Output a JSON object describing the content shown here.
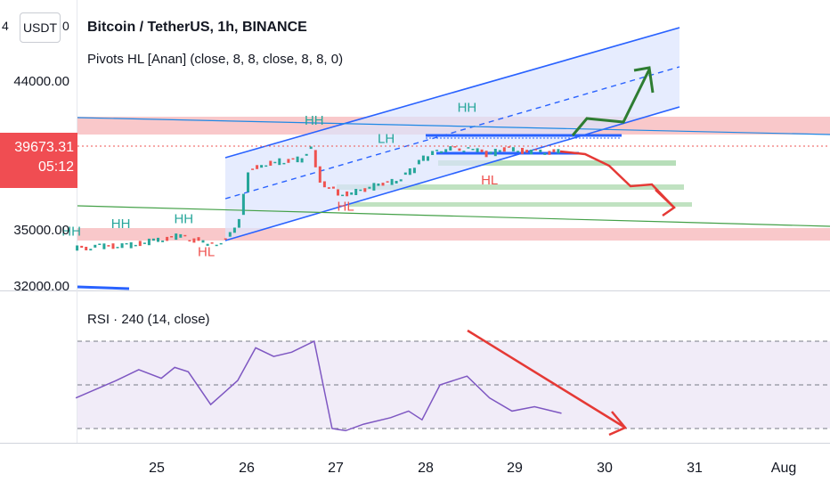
{
  "header": {
    "title": "Bitcoin / TetherUS, 1h, BINANCE",
    "indicator": "Pivots HL [Anan] (close, 8, 8, close, 8, 8, 0)",
    "unit_left": "4",
    "unit": "USDT",
    "unit_right": "0"
  },
  "last_price": {
    "value": "39673.31",
    "countdown": "05:12"
  },
  "rsi_panel": {
    "label": "RSI · 240 (14, close)"
  },
  "colors": {
    "up": "#26a69a",
    "down": "#ef5350",
    "channel": "#2962ff",
    "arrow_green": "#2e7d32",
    "arrow_red": "#e53935",
    "rsi_line": "#7e57c2"
  },
  "chart_data": [
    {
      "type": "candlestick",
      "title": "Bitcoin / TetherUS, 1h, BINANCE",
      "x_ticks": [
        "25",
        "26",
        "27",
        "28",
        "29",
        "30",
        "31",
        "Aug"
      ],
      "y_ticks": [
        "44000.00",
        "35000.00",
        "32000.00"
      ],
      "price_path": [
        [
          24.1,
          33800
        ],
        [
          24.4,
          33950
        ],
        [
          24.7,
          34000
        ],
        [
          25.0,
          34300
        ],
        [
          25.3,
          34600
        ],
        [
          25.6,
          34050
        ],
        [
          25.8,
          34350
        ],
        [
          25.95,
          35700
        ],
        [
          26.05,
          38600
        ],
        [
          26.2,
          38900
        ],
        [
          26.4,
          39100
        ],
        [
          26.6,
          39200
        ],
        [
          26.75,
          39900
        ],
        [
          26.85,
          37900
        ],
        [
          27.0,
          37300
        ],
        [
          27.1,
          37100
        ],
        [
          27.3,
          37300
        ],
        [
          27.5,
          37700
        ],
        [
          27.7,
          37900
        ],
        [
          27.85,
          38500
        ],
        [
          28.0,
          39300
        ],
        [
          28.2,
          39800
        ],
        [
          28.5,
          39900
        ],
        [
          28.7,
          39500
        ],
        [
          28.9,
          39850
        ],
        [
          29.2,
          39650
        ],
        [
          29.5,
          39673
        ]
      ],
      "pivot_labels": [
        {
          "text": "HH",
          "x": 24.05,
          "y": 34600,
          "kind": "high"
        },
        {
          "text": "HH",
          "x": 24.6,
          "y": 35050,
          "kind": "high"
        },
        {
          "text": "HH",
          "x": 25.3,
          "y": 35350,
          "kind": "high"
        },
        {
          "text": "HL",
          "x": 25.55,
          "y": 33350,
          "kind": "low"
        },
        {
          "text": "HH",
          "x": 26.75,
          "y": 41300,
          "kind": "high"
        },
        {
          "text": "LH",
          "x": 27.55,
          "y": 40200,
          "kind": "high"
        },
        {
          "text": "HL",
          "x": 27.1,
          "y": 36100,
          "kind": "low"
        },
        {
          "text": "HH",
          "x": 28.45,
          "y": 42100,
          "kind": "high"
        },
        {
          "text": "HL",
          "x": 28.7,
          "y": 37700,
          "kind": "low"
        }
      ],
      "last_price": 39673.31,
      "grid": false
    },
    {
      "type": "line",
      "title": "RSI · 240 (14, close)",
      "series": [
        {
          "name": "RSI · 240 (14, close)",
          "x": [
            24.1,
            24.55,
            24.8,
            25.05,
            25.2,
            25.35,
            25.6,
            25.9,
            26.1,
            26.3,
            26.5,
            26.75,
            26.95,
            27.1,
            27.3,
            27.6,
            27.8,
            27.95,
            28.15,
            28.45,
            28.7,
            28.95,
            29.2,
            29.5
          ],
          "y": [
            44,
            52,
            57,
            53,
            58,
            56,
            41,
            52,
            67,
            63,
            65,
            70,
            30,
            29,
            32,
            35,
            38,
            34,
            50,
            54,
            44,
            38,
            40,
            37
          ]
        }
      ],
      "grid": false
    }
  ]
}
